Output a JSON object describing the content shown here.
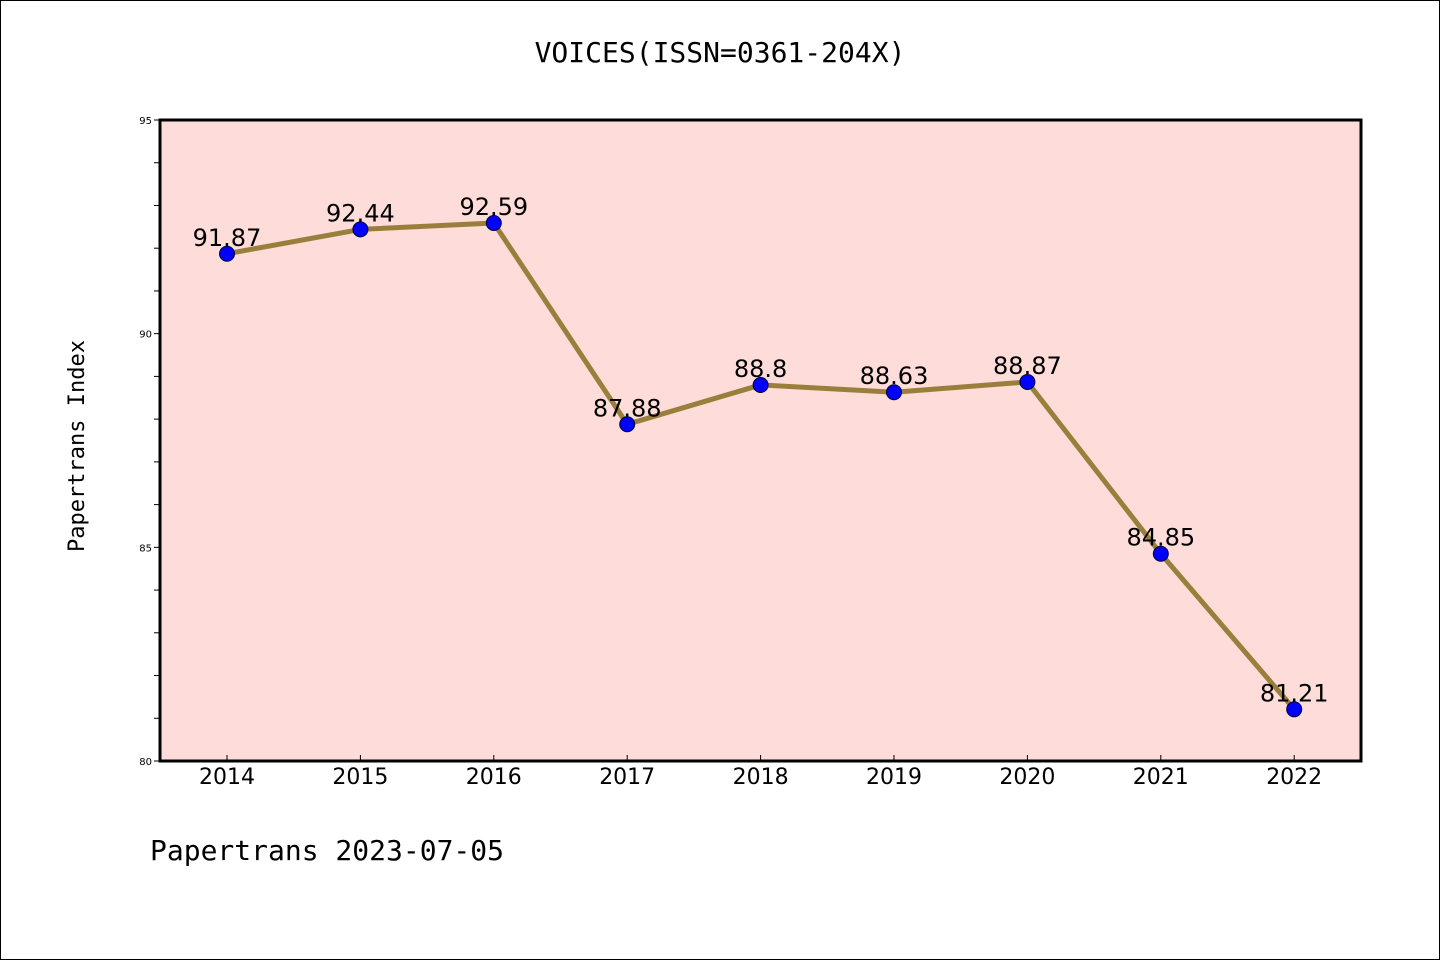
{
  "chart_data": {
    "type": "line",
    "title": "VOICES(ISSN=0361-204X)",
    "ylabel": "Papertrans Index",
    "xlabel": "",
    "ylim": [
      80,
      95
    ],
    "yticks": [
      "80",
      "85",
      "90",
      "95"
    ],
    "categories": [
      "2014",
      "2015",
      "2016",
      "2017",
      "2018",
      "2019",
      "2020",
      "2021",
      "2022"
    ],
    "series": [
      {
        "values": [
          91.87,
          92.44,
          92.59,
          87.88,
          88.8,
          88.63,
          88.87,
          84.85,
          81.21
        ],
        "labels": [
          "91.87",
          "92.44",
          "92.59",
          "87.88",
          "88.8",
          "88.63",
          "88.87",
          "84.85",
          "81.21"
        ],
        "line_color": "#9a7f3c",
        "marker_color": "#0000ff"
      }
    ],
    "plot_background": "#fddcd9",
    "grid": false,
    "legend": "none"
  },
  "footer": "Papertrans 2023-07-05"
}
